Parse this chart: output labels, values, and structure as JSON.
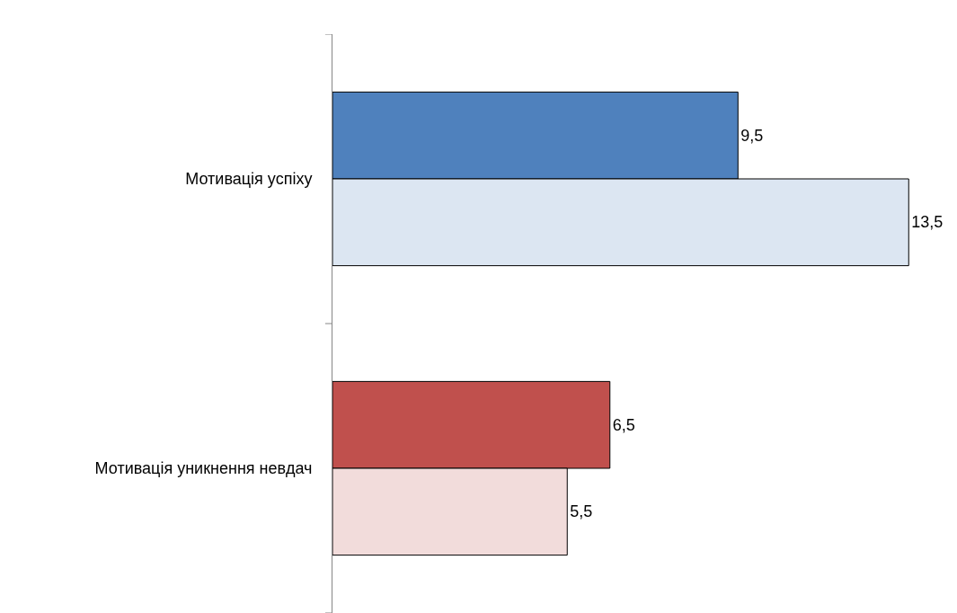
{
  "chart_data": {
    "type": "bar",
    "orientation": "horizontal",
    "categories": [
      "Мотивація успіху",
      "Мотивація уникнення невдач"
    ],
    "series": [
      {
        "colors": [
          "#4f81bd",
          "#c0504d"
        ],
        "values": [
          9.5,
          6.5
        ],
        "value_labels": [
          "9,5",
          "6,5"
        ]
      },
      {
        "colors": [
          "#dce6f2",
          "#f2dcdb"
        ],
        "values": [
          13.5,
          5.5
        ],
        "value_labels": [
          "13,5",
          "5,5"
        ]
      }
    ],
    "tick_labels": "y"
  }
}
